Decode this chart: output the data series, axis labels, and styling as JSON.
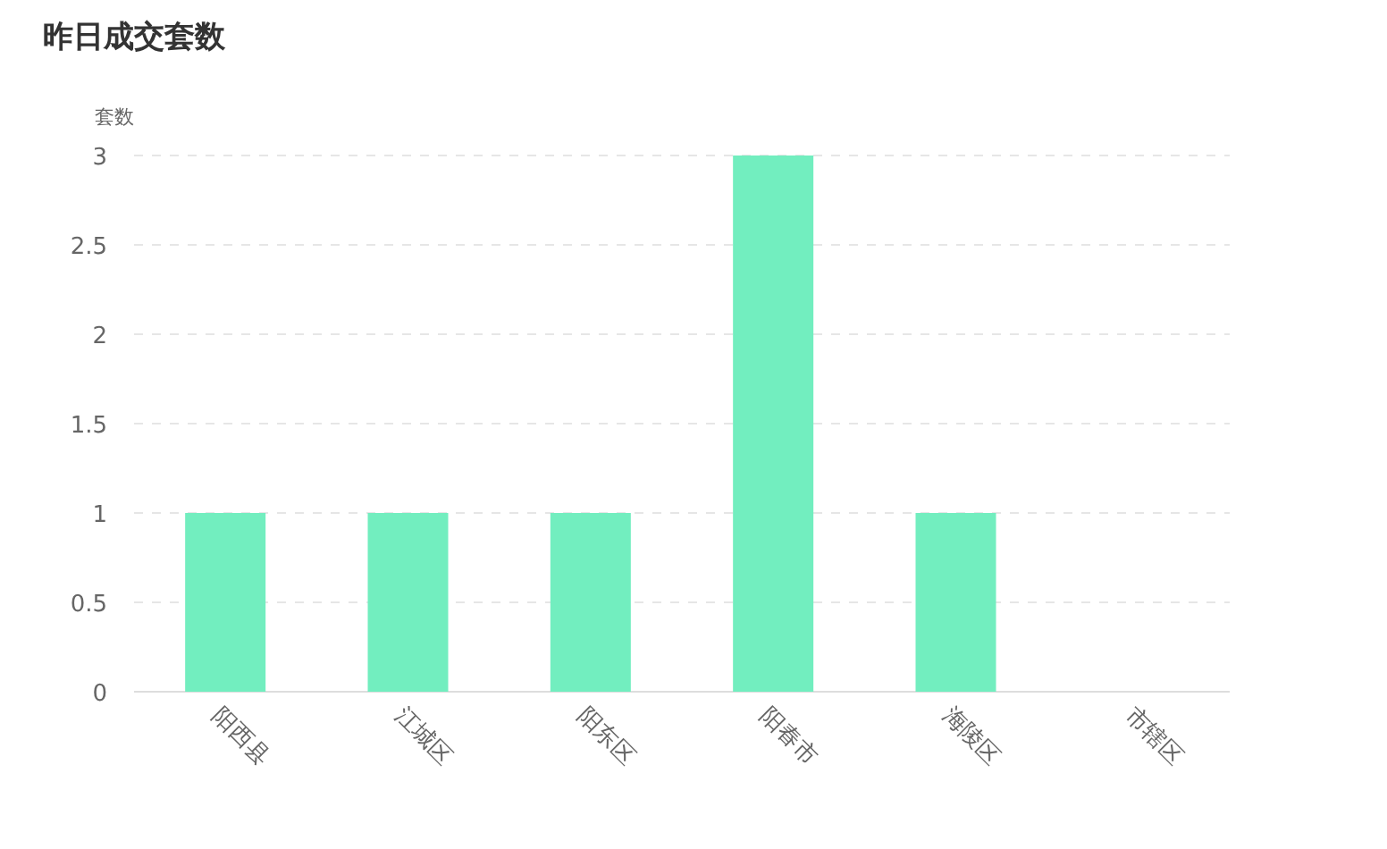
{
  "chart_data": {
    "type": "bar",
    "title": "昨日成交套数",
    "ylabel": "套数",
    "categories": [
      "阳西县",
      "江城区",
      "阳东区",
      "阳春市",
      "海陵区",
      "市辖区"
    ],
    "values": [
      1,
      1,
      1,
      3,
      1,
      0
    ],
    "color": "#72eebf",
    "ylim": [
      0,
      3
    ],
    "yticks": [
      0,
      0.5,
      1,
      1.5,
      2,
      2.5,
      3
    ],
    "grid": "y"
  }
}
